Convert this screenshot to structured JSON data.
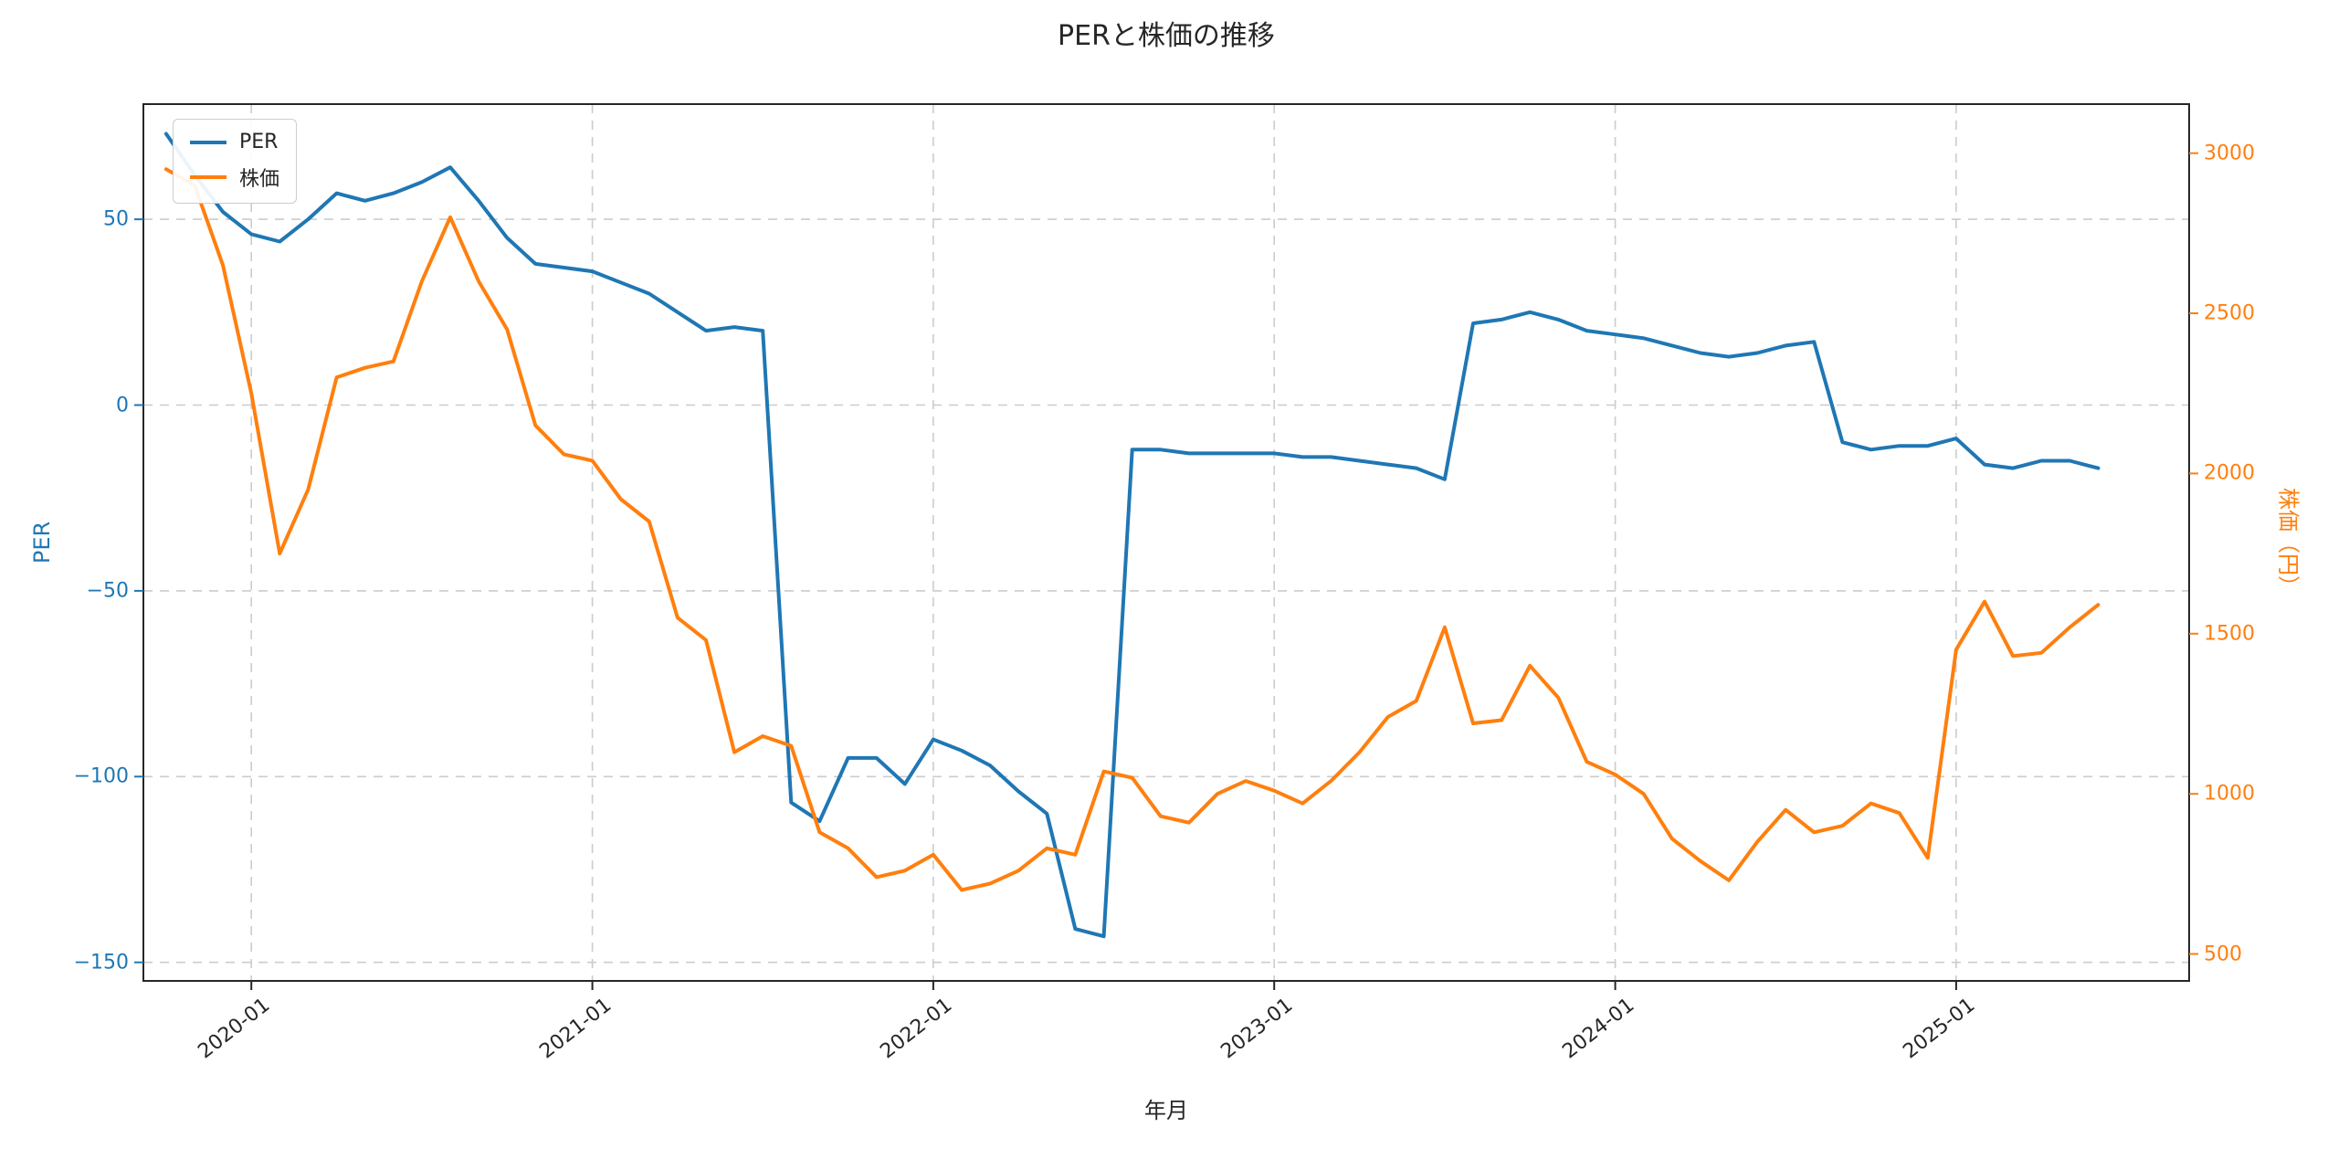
{
  "chart_data": {
    "type": "line",
    "title": "PERと株価の推移",
    "xlabel": "年月",
    "ylabel_left": "PER",
    "ylabel_right": "株価（円）",
    "legend_position": "upper-left",
    "grid": {
      "visible": true,
      "style": "dashed",
      "color": "#cccccc"
    },
    "x": [
      "2019-10",
      "2019-11",
      "2019-12",
      "2020-01",
      "2020-02",
      "2020-03",
      "2020-04",
      "2020-05",
      "2020-06",
      "2020-07",
      "2020-08",
      "2020-09",
      "2020-10",
      "2020-11",
      "2020-12",
      "2021-01",
      "2021-02",
      "2021-03",
      "2021-04",
      "2021-05",
      "2021-06",
      "2021-07",
      "2021-08",
      "2021-09",
      "2021-10",
      "2021-11",
      "2021-12",
      "2022-01",
      "2022-02",
      "2022-03",
      "2022-04",
      "2022-05",
      "2022-06",
      "2022-07",
      "2022-08",
      "2022-09",
      "2022-10",
      "2022-11",
      "2022-12",
      "2023-01",
      "2023-02",
      "2023-03",
      "2023-04",
      "2023-05",
      "2023-06",
      "2023-07",
      "2023-08",
      "2023-09",
      "2023-10",
      "2023-11",
      "2023-12",
      "2024-01",
      "2024-02",
      "2024-03",
      "2024-04",
      "2024-05",
      "2024-06",
      "2024-07",
      "2024-08",
      "2024-09",
      "2024-10",
      "2024-11",
      "2024-12",
      "2025-01",
      "2025-02",
      "2025-03",
      "2025-04",
      "2025-05",
      "2025-06"
    ],
    "x_tick_labels": [
      "2020-01",
      "2021-01",
      "2022-01",
      "2023-01",
      "2024-01",
      "2025-01"
    ],
    "left_axis": {
      "ticks": [
        50,
        0,
        -50,
        -100,
        -150
      ],
      "range": [
        -155,
        81
      ],
      "color": "#1f77b4"
    },
    "right_axis": {
      "ticks": [
        3000,
        2500,
        2000,
        1500,
        1000,
        500
      ],
      "range": [
        416,
        3153
      ],
      "color": "#ff7f0e"
    },
    "series": [
      {
        "name": "PER",
        "axis": "left",
        "color": "#1f77b4",
        "values": [
          73,
          62,
          52,
          46,
          44,
          50,
          57,
          55,
          57,
          60,
          64,
          55,
          45,
          38,
          37,
          36,
          33,
          30,
          25,
          20,
          21,
          20,
          -107,
          -112,
          -95,
          -95,
          -102,
          -90,
          -93,
          -97,
          -104,
          -110,
          -141,
          -143,
          -12,
          -12,
          -13,
          -13,
          -13,
          -13,
          -14,
          -14,
          -15,
          -16,
          -17,
          -20,
          22,
          23,
          25,
          23,
          20,
          19,
          18,
          16,
          14,
          13,
          14,
          16,
          17,
          -10,
          -12,
          -11,
          -11,
          -9,
          -16,
          -17,
          -15,
          -15,
          -17
        ]
      },
      {
        "name": "株価",
        "axis": "right",
        "color": "#ff7f0e",
        "values": [
          2950,
          2900,
          2650,
          2250,
          1750,
          1950,
          2300,
          2330,
          2350,
          2600,
          2800,
          2600,
          2450,
          2150,
          2060,
          2040,
          1920,
          1850,
          1550,
          1480,
          1130,
          1180,
          1150,
          880,
          830,
          740,
          760,
          810,
          700,
          720,
          760,
          830,
          810,
          1070,
          1050,
          930,
          910,
          1000,
          1040,
          1010,
          970,
          1040,
          1130,
          1240,
          1290,
          1520,
          1220,
          1230,
          1400,
          1300,
          1100,
          1060,
          1000,
          860,
          790,
          730,
          850,
          950,
          880,
          900,
          970,
          940,
          800,
          1450,
          1600,
          1430,
          1440,
          1520,
          1590
        ]
      }
    ]
  }
}
